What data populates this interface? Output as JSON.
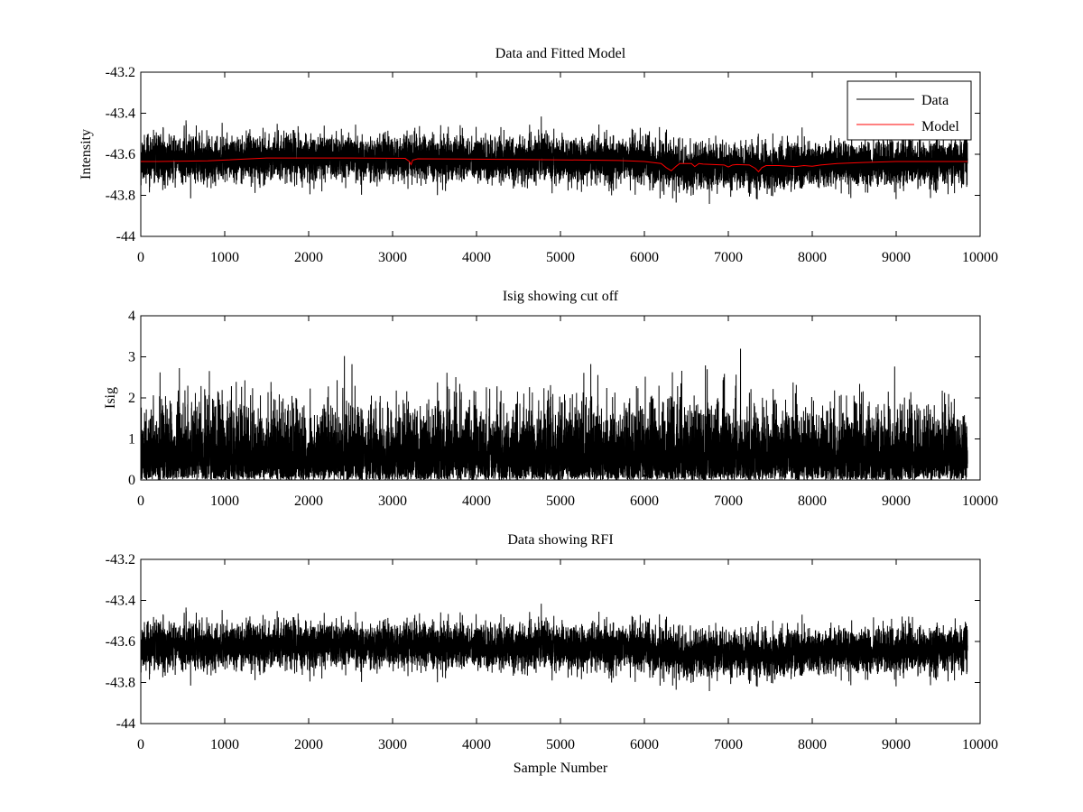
{
  "chart_data": [
    {
      "type": "line",
      "title": "Data and Fitted Model",
      "xlabel": "",
      "ylabel": "Intensity",
      "xlim": [
        0,
        10000
      ],
      "ylim": [
        -44,
        -43.2
      ],
      "xticks": [
        0,
        1000,
        2000,
        3000,
        4000,
        5000,
        6000,
        7000,
        8000,
        9000,
        10000
      ],
      "yticks": [
        -44,
        -43.8,
        -43.6,
        -43.4,
        -43.2
      ],
      "grid": false,
      "legend": "top-right",
      "series": [
        {
          "name": "Data",
          "color": "#000000",
          "kind": "noise",
          "x_range": [
            0,
            9850
          ],
          "n_points": 9850,
          "noise_sigma": 0.055,
          "noise_max_dev": 0.22,
          "seed": 11,
          "baseline": {
            "x": [
              0,
              1500,
              2500,
              4500,
              5800,
              6200,
              6400,
              6800,
              7200,
              7600,
              8000,
              8600,
              9850
            ],
            "y": [
              -43.63,
              -43.615,
              -43.615,
              -43.625,
              -43.63,
              -43.65,
              -43.66,
              -43.655,
              -43.66,
              -43.66,
              -43.65,
              -43.64,
              -43.635
            ]
          }
        },
        {
          "name": "Model",
          "color": "#ff0000",
          "kind": "line",
          "x": [
            0,
            200,
            800,
            1500,
            2500,
            3150,
            3200,
            3220,
            3240,
            3300,
            4500,
            5700,
            6000,
            6200,
            6260,
            6320,
            6380,
            6420,
            6560,
            6600,
            6650,
            6700,
            6950,
            7000,
            7050,
            7100,
            7250,
            7320,
            7360,
            7400,
            7450,
            7600,
            7800,
            7900,
            8000,
            8100,
            8300,
            8600,
            9000,
            9850
          ],
          "y": [
            -43.635,
            -43.635,
            -43.632,
            -43.618,
            -43.618,
            -43.62,
            -43.635,
            -43.65,
            -43.628,
            -43.622,
            -43.625,
            -43.63,
            -43.635,
            -43.645,
            -43.665,
            -43.68,
            -43.658,
            -43.645,
            -43.645,
            -43.66,
            -43.645,
            -43.648,
            -43.652,
            -43.662,
            -43.652,
            -43.65,
            -43.652,
            -43.668,
            -43.685,
            -43.665,
            -43.655,
            -43.655,
            -43.66,
            -43.655,
            -43.658,
            -43.652,
            -43.645,
            -43.64,
            -43.635,
            -43.635
          ]
        }
      ]
    },
    {
      "type": "line",
      "title": "Isig showing cut off",
      "xlabel": "",
      "ylabel": "Isig",
      "xlim": [
        0,
        10000
      ],
      "ylim": [
        0,
        4
      ],
      "xticks": [
        0,
        1000,
        2000,
        3000,
        4000,
        5000,
        6000,
        7000,
        8000,
        9000,
        10000
      ],
      "yticks": [
        0,
        1,
        2,
        3,
        4
      ],
      "grid": false,
      "series": [
        {
          "color": "#000000",
          "kind": "abs-noise",
          "x_range": [
            0,
            9850
          ],
          "n_points": 9850,
          "noise_sigma": 0.8,
          "noise_max_dev": 3.7,
          "seed": 23
        }
      ]
    },
    {
      "type": "line",
      "title": "Data showing RFI",
      "xlabel": "Sample Number",
      "ylabel": "",
      "xlim": [
        0,
        10000
      ],
      "ylim": [
        -44,
        -43.2
      ],
      "xticks": [
        0,
        1000,
        2000,
        3000,
        4000,
        5000,
        6000,
        7000,
        8000,
        9000,
        10000
      ],
      "yticks": [
        -44,
        -43.8,
        -43.6,
        -43.4,
        -43.2
      ],
      "grid": false,
      "series": [
        {
          "color": "#000000",
          "kind": "noise",
          "x_range": [
            0,
            9850
          ],
          "n_points": 9850,
          "noise_sigma": 0.055,
          "noise_max_dev": 0.22,
          "seed": 11,
          "baseline": {
            "x": [
              0,
              1500,
              2500,
              4500,
              5800,
              6200,
              6400,
              6800,
              7200,
              7600,
              8000,
              8600,
              9850
            ],
            "y": [
              -43.63,
              -43.615,
              -43.615,
              -43.625,
              -43.63,
              -43.65,
              -43.66,
              -43.655,
              -43.66,
              -43.66,
              -43.65,
              -43.64,
              -43.635
            ]
          }
        }
      ]
    }
  ]
}
